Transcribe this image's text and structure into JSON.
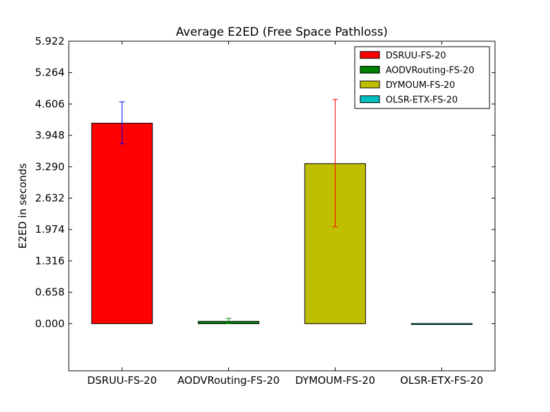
{
  "chart_data": {
    "type": "bar",
    "title": "Average E2ED (Free Space Pathloss)",
    "xlabel": "",
    "ylabel": "E2ED in seconds",
    "categories": [
      "DSRUU-FS-20",
      "AODVRouting-FS-20",
      "DYMOUM-FS-20",
      "OLSR-ETX-FS-20"
    ],
    "values": [
      4.203,
      0.048,
      3.355,
      0.004
    ],
    "error_low": [
      3.77,
      0.0,
      2.03,
      0.0
    ],
    "error_high": [
      4.65,
      0.11,
      4.7,
      0.0
    ],
    "colors": [
      "#ff0000",
      "#008000",
      "#bfbf00",
      "#00bfbf"
    ],
    "error_colors": [
      "#0000ff",
      "#008000",
      "#ff0000",
      "#00bfbf"
    ],
    "ylim": [
      -0.988,
      5.922
    ],
    "yticks": [
      "0.000",
      "0.658",
      "1.316",
      "1.974",
      "2.632",
      "3.290",
      "3.948",
      "4.606",
      "5.264",
      "5.922"
    ],
    "legend": {
      "position": "top-right",
      "entries": [
        "DSRUU-FS-20",
        "AODVRouting-FS-20",
        "DYMOUM-FS-20",
        "OLSR-ETX-FS-20"
      ]
    },
    "grid": false
  }
}
